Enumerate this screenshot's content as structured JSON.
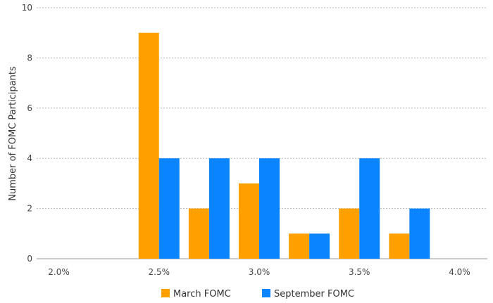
{
  "chart_data": {
    "type": "bar",
    "title": "",
    "xlabel": "",
    "ylabel": "Number of FOMC Participants",
    "ylim": [
      0,
      10
    ],
    "yticks": [
      0,
      2,
      4,
      6,
      8,
      10
    ],
    "xticks": [
      "2.0%",
      "2.5%",
      "3.0%",
      "3.5%",
      "4.0%"
    ],
    "categories": [
      "2.0%",
      "2.125%",
      "2.25%",
      "2.375%",
      "2.5%",
      "2.625%",
      "2.75%",
      "2.875%",
      "3.0%",
      "3.125%",
      "3.25%",
      "3.375%",
      "3.5%",
      "3.625%",
      "3.75%",
      "3.875%",
      "4.0%"
    ],
    "grid": true,
    "legend_position": "bottom",
    "series": [
      {
        "name": "March FOMC",
        "color": "#FFA000",
        "values": [
          0,
          0,
          0,
          0,
          9,
          0,
          2,
          0,
          3,
          0,
          1,
          0,
          2,
          0,
          1,
          0,
          0
        ]
      },
      {
        "name": "September FOMC",
        "color": "#0A84FF",
        "values": [
          0,
          0,
          0,
          0,
          4,
          0,
          4,
          0,
          4,
          0,
          1,
          0,
          4,
          0,
          2,
          0,
          0
        ]
      }
    ]
  }
}
